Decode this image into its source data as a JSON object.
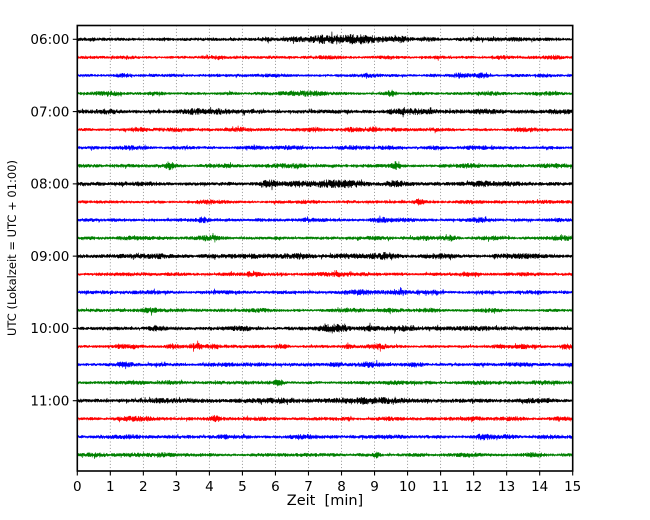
{
  "chart_data": {
    "type": "line",
    "chart_kind": "seismogram-dayplot",
    "title": "",
    "xlabel": "Zeit  [min]",
    "ylabel": "UTC (Lokalzeit = UTC + 01:00)",
    "xlim": [
      0,
      15
    ],
    "x_tick_labels": [
      "0",
      "1",
      "2",
      "3",
      "4",
      "5",
      "6",
      "7",
      "8",
      "9",
      "10",
      "11",
      "12",
      "13",
      "14",
      "15"
    ],
    "y_tick_labels": [
      "06:00",
      "07:00",
      "08:00",
      "09:00",
      "10:00",
      "11:00"
    ],
    "trace_interval_min": 15,
    "grid": "vertical dotted gridline at every minute, no horizontal gridlines",
    "grid_color": "#888888",
    "legend": "none",
    "colors": {
      "black": "#000000",
      "red": "#ff0000",
      "blue": "#0000ff",
      "green": "#008000"
    },
    "traces": [
      {
        "time": "06:00",
        "color": "black",
        "base": 1.4,
        "bursts": [
          [
            5.7,
            1.3,
            0.15
          ],
          [
            6.6,
            1.6,
            0.3
          ],
          [
            7.3,
            2.2,
            0.25
          ],
          [
            8.0,
            3.2,
            0.4
          ],
          [
            8.7,
            2.6,
            0.3
          ],
          [
            9.4,
            1.2,
            0.25
          ],
          [
            9.9,
            1.4,
            0.2
          ],
          [
            10.5,
            0.9,
            0.2
          ],
          [
            12.4,
            0.7,
            0.3
          ],
          [
            13.3,
            0.9,
            0.25
          ]
        ]
      },
      {
        "time": "06:15",
        "color": "red",
        "base": 1.3,
        "bursts": [
          [
            1.5,
            0.6,
            0.3
          ],
          [
            4.1,
            0.5,
            0.2
          ],
          [
            7.6,
            0.7,
            0.3
          ],
          [
            9.3,
            0.6,
            0.2
          ],
          [
            11.1,
            0.5,
            0.25
          ],
          [
            12.9,
            0.7,
            0.2
          ],
          [
            14.5,
            0.9,
            0.2
          ]
        ]
      },
      {
        "time": "06:30",
        "color": "blue",
        "base": 1.3,
        "bursts": [
          [
            1.4,
            1.0,
            0.15
          ],
          [
            5.6,
            0.7,
            0.2
          ],
          [
            6.1,
            0.7,
            0.15
          ],
          [
            8.8,
            0.9,
            0.2
          ],
          [
            11.6,
            1.9,
            0.2
          ],
          [
            12.2,
            1.5,
            0.15
          ],
          [
            14.2,
            1.0,
            0.2
          ]
        ]
      },
      {
        "time": "06:45",
        "color": "green",
        "base": 1.4,
        "bursts": [
          [
            0.9,
            1.7,
            0.25
          ],
          [
            2.4,
            0.7,
            0.2
          ],
          [
            6.6,
            1.4,
            0.4
          ],
          [
            7.3,
            1.0,
            0.3
          ],
          [
            9.5,
            2.6,
            0.1
          ],
          [
            12.5,
            0.9,
            0.3
          ],
          [
            14.3,
            1.1,
            0.25
          ]
        ]
      },
      {
        "time": "07:00",
        "color": "black",
        "base": 1.7,
        "bursts": [
          [
            1.0,
            0.9,
            0.3
          ],
          [
            3.6,
            1.3,
            0.3
          ],
          [
            4.4,
            1.0,
            0.4
          ],
          [
            9.8,
            1.2,
            0.35
          ],
          [
            10.5,
            1.1,
            0.3
          ],
          [
            11.5,
            0.9,
            0.3
          ],
          [
            12.3,
            0.9,
            0.25
          ],
          [
            14.6,
            1.2,
            0.3
          ]
        ]
      },
      {
        "time": "07:15",
        "color": "red",
        "base": 1.4,
        "bursts": [
          [
            1.8,
            1.1,
            0.2
          ],
          [
            2.9,
            0.9,
            0.2
          ],
          [
            5.0,
            1.4,
            0.25
          ],
          [
            7.2,
            1.6,
            0.2
          ],
          [
            8.3,
            1.1,
            0.2
          ],
          [
            9.0,
            1.9,
            0.12
          ],
          [
            9.6,
            1.0,
            0.2
          ],
          [
            10.8,
            0.9,
            0.2
          ],
          [
            13.5,
            0.7,
            0.3
          ]
        ]
      },
      {
        "time": "07:30",
        "color": "blue",
        "base": 1.4,
        "bursts": [
          [
            1.5,
            1.1,
            0.3
          ],
          [
            5.2,
            0.9,
            0.25
          ],
          [
            6.5,
            0.7,
            0.3
          ],
          [
            8.3,
            0.9,
            0.2
          ],
          [
            9.5,
            1.1,
            0.2
          ],
          [
            10.9,
            0.9,
            0.2
          ],
          [
            12.0,
            0.7,
            0.3
          ]
        ]
      },
      {
        "time": "07:45",
        "color": "green",
        "base": 1.5,
        "bursts": [
          [
            2.8,
            3.0,
            0.1
          ],
          [
            4.5,
            0.9,
            0.3
          ],
          [
            6.5,
            1.2,
            0.35
          ],
          [
            9.65,
            3.2,
            0.09
          ],
          [
            12.0,
            0.9,
            0.3
          ],
          [
            14.5,
            1.3,
            0.3
          ]
        ]
      },
      {
        "time": "08:00",
        "color": "black",
        "base": 1.6,
        "bursts": [
          [
            2.0,
            0.9,
            0.4
          ],
          [
            5.8,
            2.8,
            0.22
          ],
          [
            6.7,
            1.4,
            0.3
          ],
          [
            7.6,
            2.3,
            0.4
          ],
          [
            8.3,
            1.8,
            0.3
          ],
          [
            9.6,
            2.4,
            0.2
          ],
          [
            12.2,
            1.6,
            0.3
          ],
          [
            13.0,
            0.9,
            0.3
          ]
        ]
      },
      {
        "time": "08:15",
        "color": "red",
        "base": 1.3,
        "bursts": [
          [
            4.0,
            1.1,
            0.3
          ],
          [
            6.8,
            0.7,
            0.3
          ],
          [
            10.35,
            2.3,
            0.12
          ],
          [
            12.0,
            0.7,
            0.4
          ],
          [
            14.3,
            0.8,
            0.25
          ]
        ]
      },
      {
        "time": "08:30",
        "color": "blue",
        "base": 1.4,
        "bursts": [
          [
            3.8,
            1.9,
            0.1
          ],
          [
            7.0,
            0.9,
            0.3
          ],
          [
            9.3,
            1.4,
            0.3
          ],
          [
            9.9,
            0.9,
            0.2
          ],
          [
            12.2,
            1.4,
            0.25
          ],
          [
            14.5,
            0.9,
            0.2
          ]
        ]
      },
      {
        "time": "08:45",
        "color": "green",
        "base": 1.5,
        "bursts": [
          [
            1.8,
            1.1,
            0.3
          ],
          [
            4.0,
            1.4,
            0.25
          ],
          [
            9.0,
            1.1,
            0.3
          ],
          [
            10.5,
            1.2,
            0.3
          ],
          [
            11.3,
            1.9,
            0.12
          ],
          [
            12.5,
            1.1,
            0.3
          ],
          [
            14.7,
            1.4,
            0.2
          ]
        ]
      },
      {
        "time": "09:00",
        "color": "black",
        "base": 1.8,
        "bursts": [
          [
            2.5,
            0.9,
            0.4
          ],
          [
            5.5,
            1.1,
            0.4
          ],
          [
            6.8,
            1.4,
            0.3
          ],
          [
            8.2,
            1.4,
            0.4
          ],
          [
            9.3,
            1.7,
            0.3
          ],
          [
            11.0,
            0.9,
            0.4
          ],
          [
            13.5,
            1.1,
            0.4
          ]
        ]
      },
      {
        "time": "09:15",
        "color": "red",
        "base": 1.5,
        "bursts": [
          [
            5.3,
            2.1,
            0.12
          ],
          [
            7.8,
            0.9,
            0.3
          ],
          [
            11.8,
            1.4,
            0.25
          ],
          [
            13.8,
            0.9,
            0.3
          ]
        ]
      },
      {
        "time": "09:30",
        "color": "blue",
        "base": 1.5,
        "bursts": [
          [
            2.0,
            0.7,
            0.3
          ],
          [
            4.5,
            0.9,
            0.3
          ],
          [
            8.5,
            1.2,
            0.3
          ],
          [
            9.7,
            1.4,
            0.2
          ],
          [
            10.8,
            1.1,
            0.25
          ],
          [
            13.8,
            0.9,
            0.25
          ]
        ]
      },
      {
        "time": "09:45",
        "color": "green",
        "base": 1.4,
        "bursts": [
          [
            2.2,
            1.4,
            0.2
          ],
          [
            5.5,
            0.9,
            0.3
          ],
          [
            8.3,
            1.1,
            0.3
          ],
          [
            9.5,
            1.2,
            0.25
          ],
          [
            10.7,
            1.1,
            0.25
          ],
          [
            12.5,
            0.9,
            0.3
          ]
        ]
      },
      {
        "time": "10:00",
        "color": "black",
        "base": 1.7,
        "bursts": [
          [
            2.4,
            1.4,
            0.2
          ],
          [
            5.0,
            0.7,
            0.3
          ],
          [
            7.8,
            3.2,
            0.3
          ],
          [
            8.8,
            1.9,
            0.15
          ],
          [
            9.8,
            1.4,
            0.3
          ],
          [
            12.0,
            0.7,
            0.4
          ]
        ]
      },
      {
        "time": "10:15",
        "color": "red",
        "base": 1.4,
        "bursts": [
          [
            1.3,
            1.4,
            0.12
          ],
          [
            1.7,
            1.1,
            0.12
          ],
          [
            2.9,
            1.4,
            0.12
          ],
          [
            3.6,
            1.9,
            0.15
          ],
          [
            4.1,
            1.2,
            0.12
          ],
          [
            6.2,
            1.1,
            0.15
          ],
          [
            8.2,
            1.4,
            0.12
          ],
          [
            9.1,
            1.9,
            0.2
          ],
          [
            12.8,
            1.2,
            0.15
          ],
          [
            13.5,
            0.9,
            0.2
          ],
          [
            14.8,
            1.7,
            0.12
          ]
        ]
      },
      {
        "time": "10:30",
        "color": "blue",
        "base": 1.5,
        "bursts": [
          [
            1.4,
            1.7,
            0.2
          ],
          [
            4.5,
            0.9,
            0.25
          ],
          [
            5.5,
            0.9,
            0.2
          ],
          [
            7.8,
            1.7,
            0.15
          ],
          [
            8.9,
            1.7,
            0.25
          ],
          [
            10.2,
            1.2,
            0.2
          ],
          [
            13.5,
            0.7,
            0.3
          ]
        ]
      },
      {
        "time": "10:45",
        "color": "green",
        "base": 1.4,
        "bursts": [
          [
            1.8,
            1.2,
            0.2
          ],
          [
            2.7,
            0.9,
            0.2
          ],
          [
            6.1,
            2.1,
            0.1
          ],
          [
            9.5,
            1.2,
            0.3
          ],
          [
            12.0,
            0.9,
            0.3
          ],
          [
            14.0,
            0.7,
            0.3
          ]
        ]
      },
      {
        "time": "11:00",
        "color": "black",
        "base": 1.8,
        "bursts": [
          [
            2.5,
            0.9,
            0.4
          ],
          [
            5.7,
            1.1,
            0.3
          ],
          [
            6.5,
            1.2,
            0.3
          ],
          [
            8.0,
            1.4,
            0.3
          ],
          [
            8.6,
            1.2,
            0.2
          ],
          [
            9.2,
            1.9,
            0.3
          ],
          [
            10.0,
            1.2,
            0.3
          ],
          [
            13.8,
            0.9,
            0.4
          ]
        ]
      },
      {
        "time": "11:15",
        "color": "red",
        "base": 1.5,
        "bursts": [
          [
            1.6,
            1.4,
            0.25
          ],
          [
            2.1,
            1.1,
            0.2
          ],
          [
            4.2,
            2.3,
            0.1
          ],
          [
            5.5,
            0.9,
            0.3
          ],
          [
            9.5,
            0.9,
            0.3
          ],
          [
            12.0,
            1.2,
            0.3
          ],
          [
            13.2,
            0.9,
            0.25
          ],
          [
            14.6,
            1.4,
            0.2
          ]
        ]
      },
      {
        "time": "11:30",
        "color": "blue",
        "base": 1.5,
        "bursts": [
          [
            1.5,
            0.9,
            0.3
          ],
          [
            4.5,
            0.9,
            0.25
          ],
          [
            6.8,
            1.1,
            0.25
          ],
          [
            9.3,
            0.9,
            0.3
          ],
          [
            12.3,
            1.7,
            0.2
          ],
          [
            13.0,
            1.4,
            0.2
          ],
          [
            14.2,
            0.9,
            0.25
          ]
        ]
      },
      {
        "time": "11:45",
        "color": "green",
        "base": 1.5,
        "bursts": [
          [
            0.5,
            1.2,
            0.2
          ],
          [
            1.8,
            1.1,
            0.25
          ],
          [
            2.6,
            1.2,
            0.2
          ],
          [
            9.05,
            2.8,
            0.07
          ],
          [
            12.0,
            0.9,
            0.3
          ],
          [
            13.8,
            1.4,
            0.25
          ]
        ]
      }
    ]
  }
}
